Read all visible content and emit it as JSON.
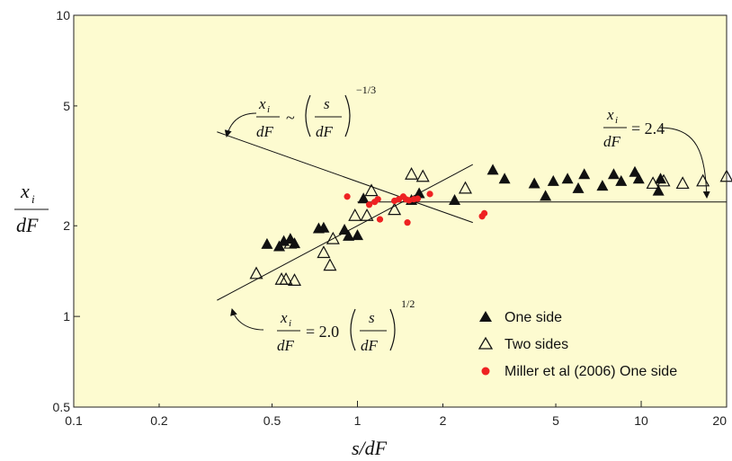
{
  "chart_data": {
    "type": "scatter",
    "xscale": "log",
    "yscale": "log",
    "xlim": [
      0.1,
      20
    ],
    "ylim": [
      0.5,
      10
    ],
    "xlabel": "s/dF",
    "ylabel_num": "x",
    "ylabel_sub": "i",
    "ylabel_den": "dF",
    "xticks": [
      {
        "v": 0.1,
        "label": "0.1"
      },
      {
        "v": 0.2,
        "label": "0.2"
      },
      {
        "v": 0.5,
        "label": "0.5"
      },
      {
        "v": 1,
        "label": "1"
      },
      {
        "v": 2,
        "label": "2"
      },
      {
        "v": 5,
        "label": "5"
      },
      {
        "v": 10,
        "label": "10"
      },
      {
        "v": 20,
        "label": "20"
      }
    ],
    "yticks": [
      {
        "v": 0.5,
        "label": "0.5"
      },
      {
        "v": 1,
        "label": "1"
      },
      {
        "v": 2,
        "label": "2"
      },
      {
        "v": 5,
        "label": "5"
      },
      {
        "v": 10,
        "label": "10"
      }
    ],
    "colors": {
      "background": "#fdfbd0",
      "one_side": "#111111",
      "two_sides": "#111111",
      "miller": "#ee2222"
    },
    "series": [
      {
        "name": "One side",
        "marker": "filled-triangle",
        "points": [
          [
            0.48,
            1.73
          ],
          [
            0.53,
            1.7
          ],
          [
            0.55,
            1.77
          ],
          [
            0.58,
            1.8
          ],
          [
            0.6,
            1.74
          ],
          [
            0.73,
            1.95
          ],
          [
            0.76,
            1.96
          ],
          [
            0.9,
            1.93
          ],
          [
            0.93,
            1.84
          ],
          [
            1.0,
            1.85
          ],
          [
            1.05,
            2.45
          ],
          [
            1.55,
            2.42
          ],
          [
            1.65,
            2.55
          ],
          [
            2.2,
            2.42
          ],
          [
            3.0,
            3.05
          ],
          [
            3.3,
            2.85
          ],
          [
            4.2,
            2.75
          ],
          [
            4.6,
            2.5
          ],
          [
            4.9,
            2.8
          ],
          [
            5.5,
            2.85
          ],
          [
            6.0,
            2.65
          ],
          [
            6.3,
            2.95
          ],
          [
            7.3,
            2.7
          ],
          [
            8.0,
            2.95
          ],
          [
            8.5,
            2.8
          ],
          [
            9.5,
            3.0
          ],
          [
            9.8,
            2.85
          ],
          [
            11.5,
            2.6
          ],
          [
            11.7,
            2.85
          ]
        ]
      },
      {
        "name": "Two sides",
        "marker": "open-triangle",
        "points": [
          [
            0.44,
            1.38
          ],
          [
            0.54,
            1.32
          ],
          [
            0.56,
            1.32
          ],
          [
            0.6,
            1.31
          ],
          [
            0.58,
            1.74
          ],
          [
            0.76,
            1.62
          ],
          [
            0.8,
            1.47
          ],
          [
            0.82,
            1.8
          ],
          [
            0.98,
            2.15
          ],
          [
            1.08,
            2.15
          ],
          [
            1.12,
            2.6
          ],
          [
            1.35,
            2.25
          ],
          [
            1.55,
            2.95
          ],
          [
            1.7,
            2.9
          ],
          [
            2.4,
            2.65
          ],
          [
            11.0,
            2.75
          ],
          [
            12.0,
            2.8
          ],
          [
            14.0,
            2.75
          ],
          [
            16.5,
            2.8
          ],
          [
            20.0,
            2.9
          ]
        ]
      },
      {
        "name": "Miller et al (2006) One side",
        "marker": "red-dot",
        "points": [
          [
            0.92,
            2.5
          ],
          [
            1.1,
            2.35
          ],
          [
            1.15,
            2.4
          ],
          [
            1.18,
            2.45
          ],
          [
            1.2,
            2.1
          ],
          [
            1.35,
            2.42
          ],
          [
            1.4,
            2.45
          ],
          [
            1.45,
            2.5
          ],
          [
            1.48,
            2.45
          ],
          [
            1.5,
            2.05
          ],
          [
            1.52,
            2.43
          ],
          [
            1.58,
            2.45
          ],
          [
            1.63,
            2.46
          ],
          [
            1.8,
            2.55
          ],
          [
            2.75,
            2.15
          ],
          [
            2.8,
            2.2
          ]
        ]
      }
    ],
    "lines": [
      {
        "name": "power 1/2",
        "x": [
          0.32,
          2.55
        ],
        "y": [
          1.1316,
          3.1937
        ]
      },
      {
        "name": "power -1/3",
        "x": [
          0.32,
          2.55
        ],
        "y": [
          4.1,
          2.05
        ]
      },
      {
        "name": "constant",
        "x": [
          1.0,
          20.0
        ],
        "y": [
          2.4,
          2.4
        ]
      }
    ],
    "annotations": {
      "upper": {
        "lhs_num": "x",
        "lhs_sub": "i",
        "lhs_den": "dF",
        "op": "~",
        "in_num": "s",
        "in_den": "dF",
        "exp": "−1/3"
      },
      "lower": {
        "lhs_num": "x",
        "lhs_sub": "i",
        "lhs_den": "dF",
        "op": "= 2.0",
        "in_num": "s",
        "in_den": "dF",
        "exp": "1/2"
      },
      "right": {
        "lhs_num": "x",
        "lhs_sub": "i",
        "lhs_den": "dF",
        "rhs": "= 2.4"
      }
    },
    "legend": {
      "placement": "bottom-right",
      "entries": [
        "One side",
        "Two sides",
        "Miller et al (2006) One side"
      ]
    }
  }
}
